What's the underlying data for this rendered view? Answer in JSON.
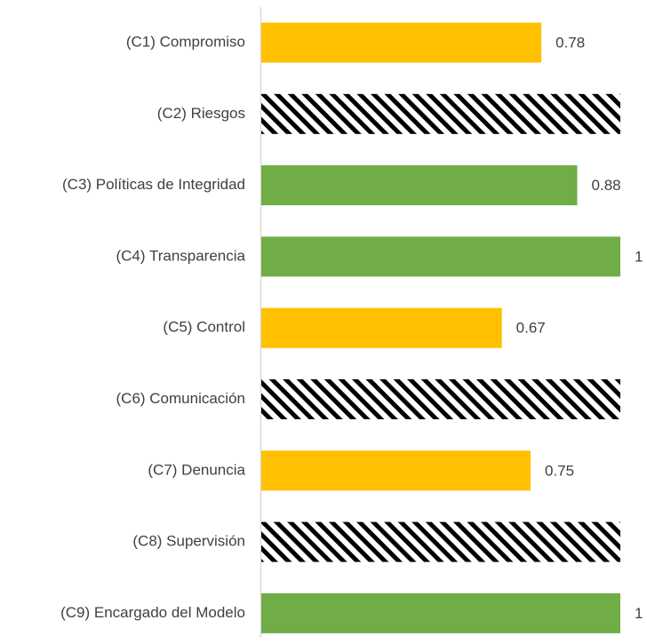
{
  "chart_data": {
    "type": "bar",
    "orientation": "horizontal",
    "categories": [
      "(C1) Compromiso",
      "(C2) Riesgos",
      "(C3) Políticas de Integridad",
      "(C4) Transparencia",
      "(C5) Control",
      "(C6) Comunicación",
      "(C7) Denuncia",
      "(C8) Supervisión",
      "(C9) Encargado del Modelo"
    ],
    "values": [
      0.78,
      1,
      0.88,
      1,
      0.67,
      1,
      0.75,
      1,
      1
    ],
    "value_labels": [
      "0.78",
      null,
      "0.88",
      "1",
      "0.67",
      null,
      "0.75",
      null,
      "1"
    ],
    "colors": [
      "#ffc000",
      "pattern",
      "#70ad47",
      "#70ad47",
      "#ffc000",
      "pattern",
      "#ffc000",
      "pattern",
      "#70ad47"
    ],
    "xlim": [
      0,
      1
    ]
  }
}
